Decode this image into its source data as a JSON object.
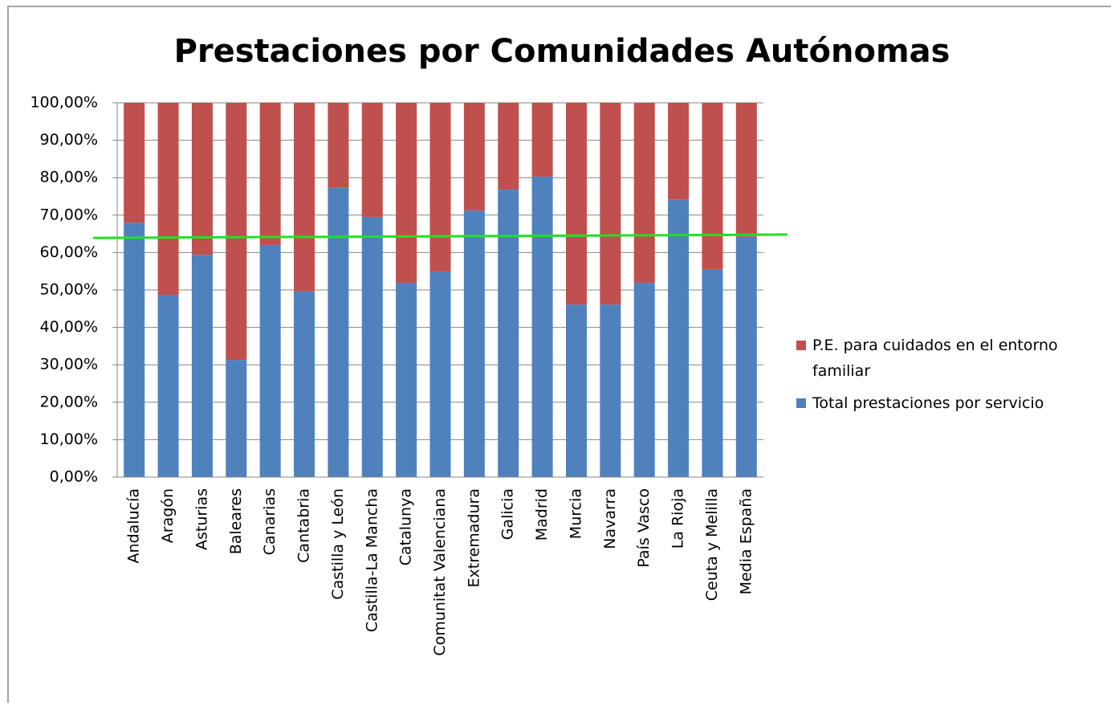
{
  "chart_data": {
    "type": "stacked_bar",
    "title": "Prestaciones por Comunidades Autónomas",
    "categories": [
      "Andalucía",
      "Aragón",
      "Asturias",
      "Baleares",
      "Canarias",
      "Cantabria",
      "Castilla y León",
      "Castilla-La Mancha",
      "Catalunya",
      "Comunitat Valenciana",
      "Extremadura",
      "Galicia",
      "Madrid",
      "Murcia",
      "Navarra",
      "País Vasco",
      "La Rioja",
      "Ceuta y Melilla",
      "Media España"
    ],
    "series": [
      {
        "name": "Total prestaciones por servicio",
        "color": "#4f81bd",
        "values": [
          68.0,
          48.7,
          59.4,
          31.3,
          62.0,
          49.6,
          77.3,
          69.5,
          51.9,
          54.9,
          71.2,
          76.8,
          80.3,
          46.1,
          46.1,
          51.9,
          74.2,
          55.4,
          64.2
        ]
      },
      {
        "name": "P.E. para cuidados en el entorno familiar",
        "color": "#c0504d",
        "values": [
          32.0,
          51.3,
          40.6,
          68.7,
          38.0,
          50.4,
          22.7,
          30.5,
          48.1,
          45.1,
          28.8,
          23.2,
          19.7,
          53.9,
          53.9,
          48.1,
          25.8,
          44.6,
          35.8
        ]
      }
    ],
    "reference_line": {
      "color": "#22e022",
      "values": [
        63.9,
        64.8
      ]
    },
    "ylim": [
      0,
      100
    ],
    "yticks": [
      {
        "value": 0,
        "label": "0,00%"
      },
      {
        "value": 10,
        "label": "10,00%"
      },
      {
        "value": 20,
        "label": "20,00%"
      },
      {
        "value": 30,
        "label": "30,00%"
      },
      {
        "value": 40,
        "label": "40,00%"
      },
      {
        "value": 50,
        "label": "50,00%"
      },
      {
        "value": 60,
        "label": "60,00%"
      },
      {
        "value": 70,
        "label": "70,00%"
      },
      {
        "value": 80,
        "label": "80,00%"
      },
      {
        "value": 90,
        "label": "90,00%"
      },
      {
        "value": 100,
        "label": "100,00%"
      }
    ],
    "grid": true,
    "legend": "right"
  }
}
